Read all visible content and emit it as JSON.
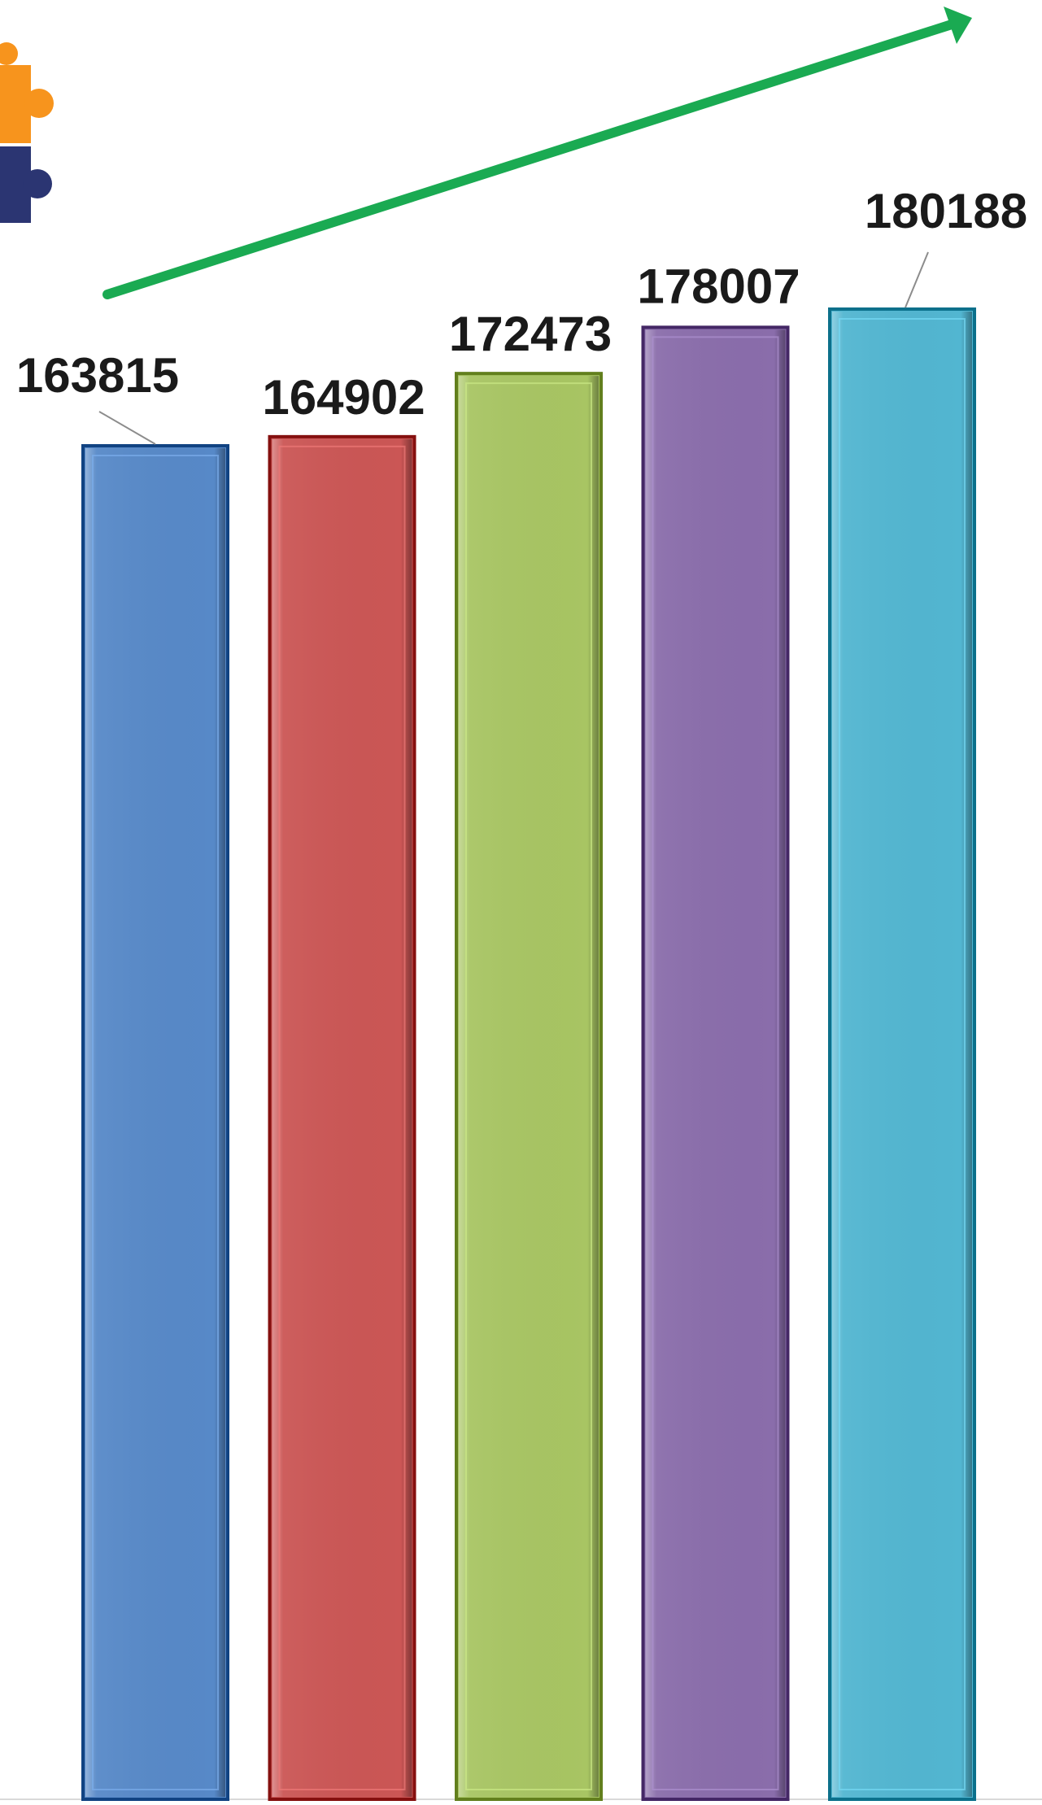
{
  "chart_data": {
    "type": "bar",
    "categories": [
      "",
      "",
      "",
      "",
      ""
    ],
    "values": [
      163815,
      164902,
      172473,
      178007,
      180188
    ],
    "data_labels": [
      "163815",
      "164902",
      "172473",
      "178007",
      "180188"
    ],
    "colors": [
      "#5789c8",
      "#cb5655",
      "#a8c563",
      "#8a6dab",
      "#52b6d1"
    ],
    "ylim": [
      0,
      200000
    ],
    "grid": false,
    "legend": "none",
    "trend_arrow": {
      "color": "#1aaa52",
      "direction": "up-right"
    },
    "title": "",
    "xlabel": "",
    "ylabel": ""
  },
  "decorations": {
    "logo_icon": "puzzle-icon",
    "logo_colors": [
      "#f7941d",
      "#2b3572"
    ]
  }
}
